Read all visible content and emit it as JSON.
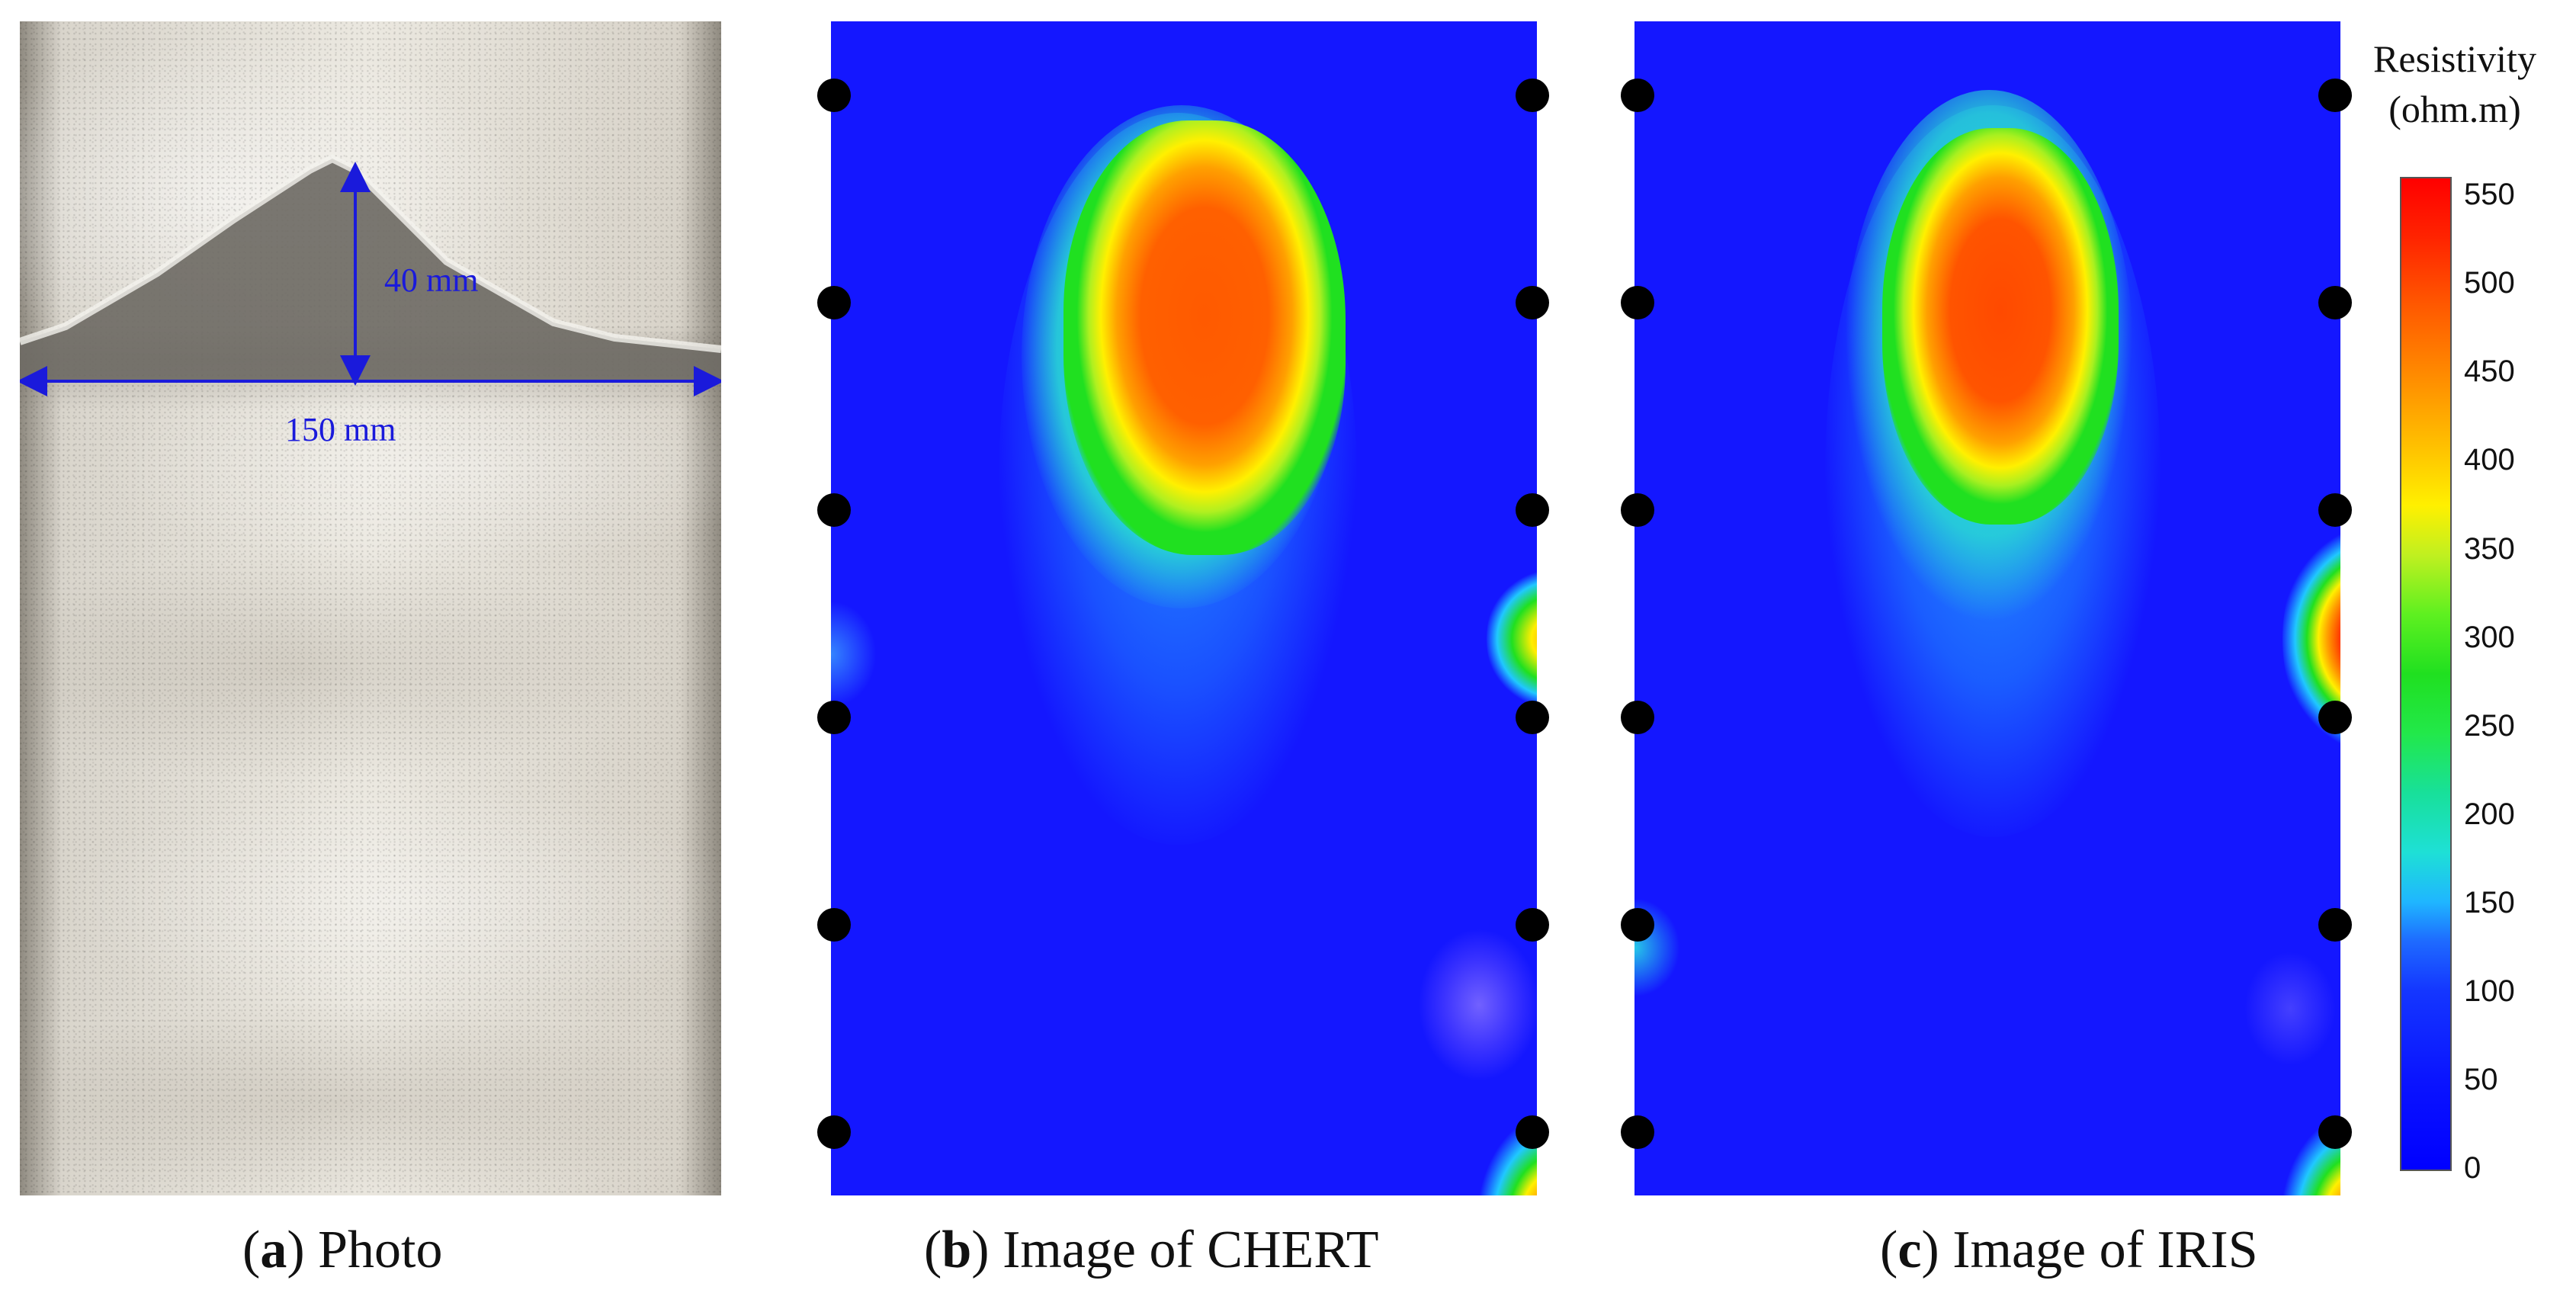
{
  "panels": {
    "photo": {
      "letter": "a",
      "caption": " Photo",
      "dimension_height": "40 mm",
      "dimension_width": "150 mm"
    },
    "chert": {
      "letter": "b",
      "caption": " Image of CHERT"
    },
    "iris": {
      "letter": "c",
      "caption": " Image of IRIS"
    }
  },
  "colorbar": {
    "title_line1": "Resistivity",
    "title_line2": "(ohm.m)",
    "ticks": [
      "550",
      "500",
      "450",
      "400",
      "350",
      "300",
      "250",
      "200",
      "150",
      "100",
      "50",
      "0"
    ],
    "range": [
      0,
      560
    ],
    "colors": {
      "low": "#0000ff",
      "mid_low": "#1fb6ff",
      "mid": "#20e020",
      "mid_high": "#fff000",
      "high": "#ff0000"
    }
  },
  "electrodes_per_side": 6
}
